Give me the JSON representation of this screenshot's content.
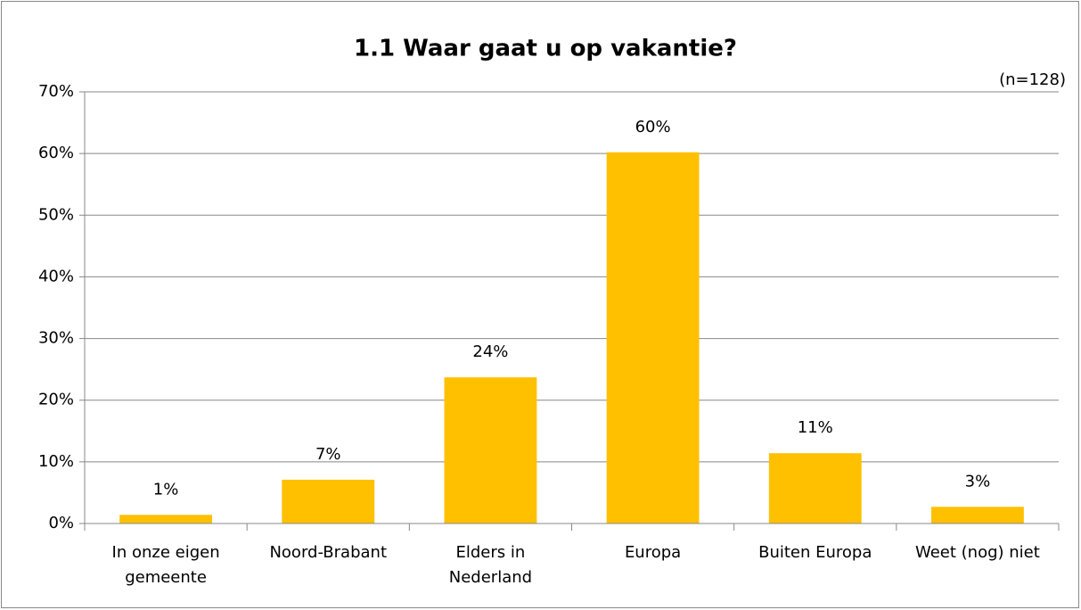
{
  "chart_data": {
    "type": "bar",
    "title": "1.1 Waar gaat u op vakantie?",
    "subtitle": "(n=128)",
    "categories": [
      "In onze eigen\ngemeente",
      "Noord-Brabant",
      "Elders in\nNederland",
      "Europa",
      "Buiten Europa",
      "Weet (nog) niet"
    ],
    "values": [
      1.4,
      7.1,
      23.7,
      60.2,
      11.4,
      2.7
    ],
    "value_labels": [
      "1%",
      "7%",
      "24%",
      "60%",
      "11%",
      "3%"
    ],
    "color": "#ffc000",
    "ylim": [
      0,
      70
    ],
    "yticks": [
      {
        "value": 0,
        "label": "0%"
      },
      {
        "value": 10,
        "label": "10%"
      },
      {
        "value": 20,
        "label": "20%"
      },
      {
        "value": 30,
        "label": "30%"
      },
      {
        "value": 40,
        "label": "40%"
      },
      {
        "value": 50,
        "label": "50%"
      },
      {
        "value": 60,
        "label": "60%"
      },
      {
        "value": 70,
        "label": "70%"
      }
    ],
    "grid": true
  }
}
